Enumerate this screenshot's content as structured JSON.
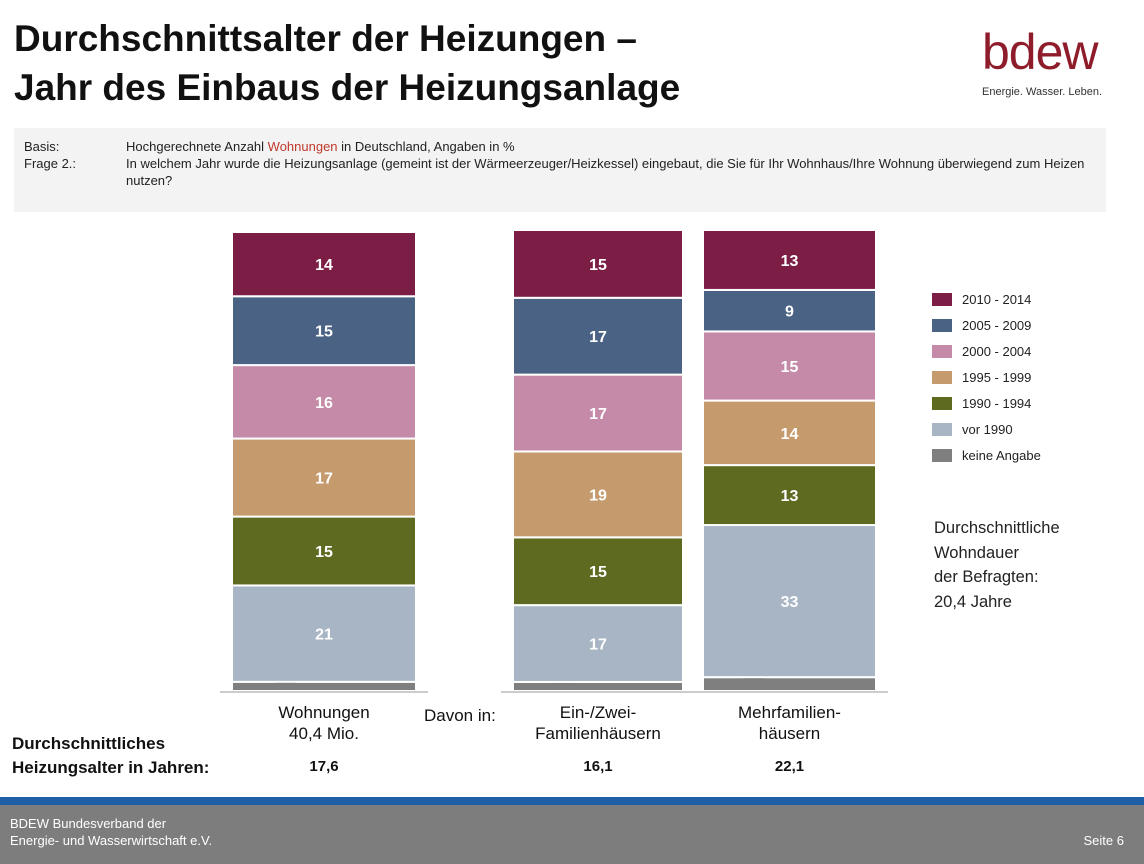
{
  "header": {
    "title_line1": "Durchschnittsalter der Heizungen –",
    "title_line2": "Jahr des Einbaus der Heizungsanlage",
    "logo_text": "bdew",
    "logo_tagline": "Energie. Wasser. Leben.",
    "logo_color": "#8e1c2b"
  },
  "basis": {
    "label1": "Basis:",
    "text1_pre": "Hochgerechnete Anzahl ",
    "text1_accent": "Wohnungen",
    "text1_post": " in Deutschland, Angaben in %",
    "label2": "Frage 2.:",
    "text2": "In welchem Jahr wurde die Heizungsanlage (gemeint ist der Wärmeerzeuger/Heizkessel) eingebaut, die Sie für Ihr Wohnhaus/Ihre Wohnung überwiegend zum Heizen nutzen?"
  },
  "chart_data": {
    "type": "bar",
    "stacked": true,
    "unit": "%",
    "categories": [
      "Wohnungen\n40,4 Mio.",
      "Ein-/Zwei-\nFamilienhäusern",
      "Mehrfamilien-\nhäusern"
    ],
    "series": [
      {
        "name": "keine Angabe",
        "color": "#7f7f7f",
        "values": [
          2,
          2,
          3
        ]
      },
      {
        "name": "vor 1990",
        "color": "#a8b5c4",
        "values": [
          21,
          17,
          33
        ]
      },
      {
        "name": "1990 - 1994",
        "color": "#5e6a20",
        "values": [
          15,
          15,
          13
        ]
      },
      {
        "name": "1995 - 1999",
        "color": "#c59b6d",
        "values": [
          17,
          19,
          14
        ]
      },
      {
        "name": "2000 - 2004",
        "color": "#c48aa8",
        "values": [
          16,
          17,
          15
        ]
      },
      {
        "name": "2005 - 2009",
        "color": "#4a6283",
        "values": [
          15,
          17,
          9
        ]
      },
      {
        "name": "2010 - 2014",
        "color": "#7c1d46",
        "values": [
          14,
          15,
          13
        ]
      }
    ],
    "legend_order": [
      "2010 - 2014",
      "2005 - 2009",
      "2000 - 2004",
      "1995 - 1999",
      "1990 - 1994",
      "vor 1990",
      "keine Angabe"
    ],
    "legend_position": "right"
  },
  "averages": {
    "row_label_line1": "Durchschnittliches",
    "row_label_line2": "Heizungsalter in Jahren:",
    "values": [
      "17,6",
      "16,1",
      "22,1"
    ]
  },
  "davon_label": "Davon in:",
  "wohndauer": {
    "line1": "Durchschnittliche",
    "line2": "Wohndauer",
    "line3": "der Befragten:",
    "value": "20,4 Jahre"
  },
  "footer": {
    "org_line1": "BDEW Bundesverband der",
    "org_line2": "Energie- und Wasserwirtschaft e.V.",
    "page": "Seite 6"
  }
}
